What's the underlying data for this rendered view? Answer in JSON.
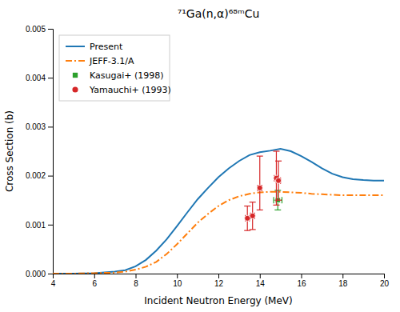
{
  "chart_data": {
    "type": "line",
    "title": "⁷¹Ga(n,α)⁶⁸ᵐCu",
    "xlabel": "Incident Neutron Energy (MeV)",
    "ylabel": "Cross Section (b)",
    "xlim": [
      4,
      20
    ],
    "xticks": [
      4,
      6,
      8,
      10,
      12,
      14,
      16,
      18,
      20
    ],
    "ylim": [
      0.0,
      0.005
    ],
    "yticks": [
      {
        "value": 0.0,
        "label": "0.000"
      },
      0.001,
      0.002,
      0.003,
      0.004,
      0.005
    ],
    "grid": false,
    "legend": "top-left",
    "series": [
      {
        "name": "Present",
        "type": "line",
        "line_style": "solid",
        "x": [
          4,
          5,
          6,
          7,
          7.5,
          8,
          8.5,
          9,
          9.5,
          10,
          10.5,
          11,
          11.5,
          12,
          12.5,
          13,
          13.5,
          14,
          14.5,
          15,
          15.5,
          16,
          16.5,
          17,
          17.5,
          18,
          18.5,
          19,
          19.5,
          20
        ],
        "values": [
          0.0,
          0.0,
          1e-05,
          4e-05,
          7e-05,
          0.00015,
          0.00028,
          0.00047,
          0.0007,
          0.00097,
          0.00125,
          0.00152,
          0.00175,
          0.00197,
          0.00215,
          0.0023,
          0.00242,
          0.00248,
          0.00251,
          0.00255,
          0.0025,
          0.0024,
          0.00228,
          0.00215,
          0.00204,
          0.00197,
          0.00193,
          0.00191,
          0.0019,
          0.0019
        ]
      },
      {
        "name": "JEFF-3.1/A",
        "type": "line",
        "line_style": "dashdot",
        "x": [
          4,
          5,
          6,
          7,
          7.5,
          8,
          8.5,
          9,
          9.5,
          10,
          10.5,
          11,
          11.5,
          12,
          12.5,
          13,
          13.5,
          14,
          14.5,
          15,
          15.5,
          16,
          16.5,
          17,
          17.5,
          18,
          18.5,
          19,
          19.5,
          20
        ],
        "values": [
          0.0,
          0.0,
          1e-05,
          2e-05,
          4e-05,
          8e-05,
          0.00014,
          0.00024,
          0.0004,
          0.0006,
          0.00082,
          0.00104,
          0.00122,
          0.00138,
          0.0015,
          0.00158,
          0.00163,
          0.00166,
          0.00167,
          0.00167,
          0.00166,
          0.00165,
          0.00163,
          0.00162,
          0.00161,
          0.0016,
          0.0016,
          0.0016,
          0.0016,
          0.0016
        ]
      },
      {
        "name": "Kasugai+ (1998)",
        "type": "scatter",
        "marker": "square",
        "x": [
          14.87
        ],
        "values": [
          0.0015
        ],
        "x_error": [
          0.2
        ],
        "error": [
          0.0002
        ]
      },
      {
        "name": "Yamauchi+ (1993)",
        "type": "scatter",
        "marker": "circle",
        "x": [
          13.4,
          13.65,
          14.0,
          14.8,
          14.9
        ],
        "values": [
          0.00113,
          0.00118,
          0.00175,
          0.00195,
          0.0019
        ],
        "x_error": [
          0.1,
          0.1,
          0.1,
          0.1,
          0.1
        ],
        "error_low": [
          0.00025,
          0.00028,
          0.00045,
          0.00055,
          0.0004
        ],
        "error_high": [
          0.00025,
          0.00028,
          0.00065,
          0.00055,
          0.0004
        ]
      }
    ]
  }
}
